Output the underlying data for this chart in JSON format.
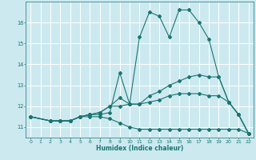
{
  "xlabel": "Humidex (Indice chaleur)",
  "background_color": "#cce9f0",
  "grid_color": "#ffffff",
  "line_color": "#1a7570",
  "xlim": [
    -0.5,
    22.5
  ],
  "ylim": [
    10.5,
    17.0
  ],
  "xticks": [
    0,
    1,
    2,
    3,
    4,
    5,
    6,
    7,
    8,
    9,
    10,
    11,
    12,
    13,
    14,
    15,
    16,
    17,
    18,
    19,
    20,
    21,
    22
  ],
  "yticks": [
    11,
    12,
    13,
    14,
    15,
    16
  ],
  "line1_x": [
    0,
    2,
    3,
    4,
    5,
    6,
    7,
    8,
    9,
    10,
    11,
    12,
    13,
    14,
    15,
    16,
    17,
    18,
    19,
    20,
    21,
    22
  ],
  "line1_y": [
    11.5,
    11.3,
    11.3,
    11.3,
    11.5,
    11.6,
    11.6,
    11.7,
    13.6,
    12.1,
    15.3,
    16.5,
    16.3,
    15.3,
    16.6,
    16.6,
    16.0,
    15.2,
    13.4,
    12.2,
    11.6,
    10.7
  ],
  "line2_x": [
    0,
    2,
    3,
    4,
    5,
    6,
    7,
    8,
    9,
    10,
    11,
    12,
    13,
    14,
    15,
    16,
    17,
    18,
    19,
    20,
    21,
    22
  ],
  "line2_y": [
    11.5,
    11.3,
    11.3,
    11.3,
    11.5,
    11.6,
    11.7,
    12.0,
    12.4,
    12.1,
    12.1,
    12.5,
    12.7,
    13.0,
    13.2,
    13.4,
    13.5,
    13.4,
    13.4,
    12.2,
    11.6,
    10.7
  ],
  "line3_x": [
    0,
    2,
    3,
    4,
    5,
    6,
    7,
    8,
    9,
    10,
    11,
    12,
    13,
    14,
    15,
    16,
    17,
    18,
    19,
    20,
    21,
    22
  ],
  "line3_y": [
    11.5,
    11.3,
    11.3,
    11.3,
    11.5,
    11.6,
    11.7,
    12.0,
    12.0,
    12.1,
    12.1,
    12.2,
    12.3,
    12.5,
    12.6,
    12.6,
    12.6,
    12.5,
    12.5,
    12.2,
    11.6,
    10.7
  ],
  "line4_x": [
    0,
    2,
    3,
    4,
    5,
    6,
    7,
    8,
    9,
    10,
    11,
    12,
    13,
    14,
    15,
    16,
    17,
    18,
    19,
    20,
    21,
    22
  ],
  "line4_y": [
    11.5,
    11.3,
    11.3,
    11.3,
    11.5,
    11.5,
    11.5,
    11.4,
    11.2,
    11.0,
    10.9,
    10.9,
    10.9,
    10.9,
    10.9,
    10.9,
    10.9,
    10.9,
    10.9,
    10.9,
    10.9,
    10.7
  ]
}
